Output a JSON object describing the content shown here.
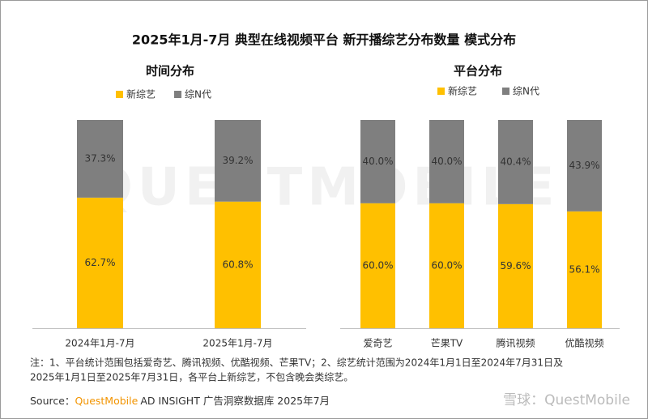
{
  "title": "2025年1月-7月 典型在线视频平台 新开播综艺分布数量 模式分布",
  "watermark": "QUESTMOBILE",
  "chart_data": [
    {
      "type": "bar",
      "stacked": true,
      "subtitle": "时间分布",
      "categories": [
        "2024年1月-7月",
        "2025年1月-7月"
      ],
      "ylim": [
        0,
        100
      ],
      "series": [
        {
          "name": "新综艺",
          "color": "#ffc000",
          "values": [
            62.7,
            60.8
          ],
          "value_labels": [
            "62.7%",
            "60.8%"
          ]
        },
        {
          "name": "综N代",
          "color": "#7f7f7f",
          "values": [
            37.3,
            39.2
          ],
          "value_labels": [
            "37.3%",
            "39.2%"
          ]
        }
      ]
    },
    {
      "type": "bar",
      "stacked": true,
      "subtitle": "平台分布",
      "categories": [
        "爱奇艺",
        "芒果TV",
        "腾讯视频",
        "优酷视频"
      ],
      "ylim": [
        0,
        100
      ],
      "series": [
        {
          "name": "新综艺",
          "color": "#ffc000",
          "values": [
            60.0,
            60.0,
            59.6,
            56.1
          ],
          "value_labels": [
            "60.0%",
            "60.0%",
            "59.6%",
            "56.1%"
          ]
        },
        {
          "name": "综N代",
          "color": "#7f7f7f",
          "values": [
            40.0,
            40.0,
            40.4,
            43.9
          ],
          "value_labels": [
            "40.0%",
            "40.0%",
            "40.4%",
            "43.9%"
          ]
        }
      ]
    }
  ],
  "notes": [
    "注：1、平台统计范围包括爱奇艺、腾讯视频、优酷视频、芒果TV；2、综艺统计范围为2024年1月1日至2024年7月31日及",
    "2025年1月1日至2025年7月31日，各平台上新综艺，不包含晚会类综艺。"
  ],
  "source": {
    "label": "Source：",
    "brand": "QuestMobile",
    "text": "AD INSIGHT 广告洞察数据库 2025年7月"
  },
  "footer_mark": "雪球：QuestMobile"
}
